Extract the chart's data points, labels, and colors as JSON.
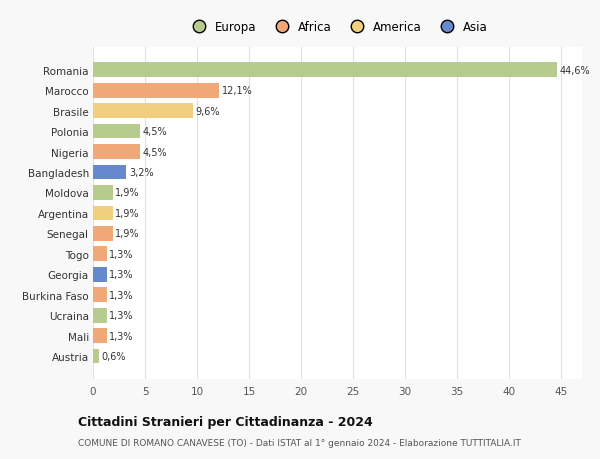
{
  "countries": [
    "Romania",
    "Marocco",
    "Brasile",
    "Polonia",
    "Nigeria",
    "Bangladesh",
    "Moldova",
    "Argentina",
    "Senegal",
    "Togo",
    "Georgia",
    "Burkina Faso",
    "Ucraina",
    "Mali",
    "Austria"
  ],
  "values": [
    44.6,
    12.1,
    9.6,
    4.5,
    4.5,
    3.2,
    1.9,
    1.9,
    1.9,
    1.3,
    1.3,
    1.3,
    1.3,
    1.3,
    0.6
  ],
  "labels": [
    "44,6%",
    "12,1%",
    "9,6%",
    "4,5%",
    "4,5%",
    "3,2%",
    "1,9%",
    "1,9%",
    "1,9%",
    "1,3%",
    "1,3%",
    "1,3%",
    "1,3%",
    "1,3%",
    "0,6%"
  ],
  "continents": [
    "Europa",
    "Africa",
    "America",
    "Europa",
    "Africa",
    "Asia",
    "Europa",
    "America",
    "Africa",
    "Africa",
    "Asia",
    "Africa",
    "Europa",
    "Africa",
    "Europa"
  ],
  "colors": {
    "Europa": "#b5cc8e",
    "Africa": "#f0a878",
    "America": "#f0d080",
    "Asia": "#6688cc"
  },
  "legend_order": [
    "Europa",
    "Africa",
    "America",
    "Asia"
  ],
  "title": "Cittadini Stranieri per Cittadinanza - 2024",
  "subtitle": "COMUNE DI ROMANO CANAVESE (TO) - Dati ISTAT al 1° gennaio 2024 - Elaborazione TUTTITALIA.IT",
  "xlim": [
    0,
    47
  ],
  "xticks": [
    0,
    5,
    10,
    15,
    20,
    25,
    30,
    35,
    40,
    45
  ],
  "background_color": "#f8f8f8",
  "plot_background": "#ffffff",
  "grid_color": "#e0e0e0"
}
